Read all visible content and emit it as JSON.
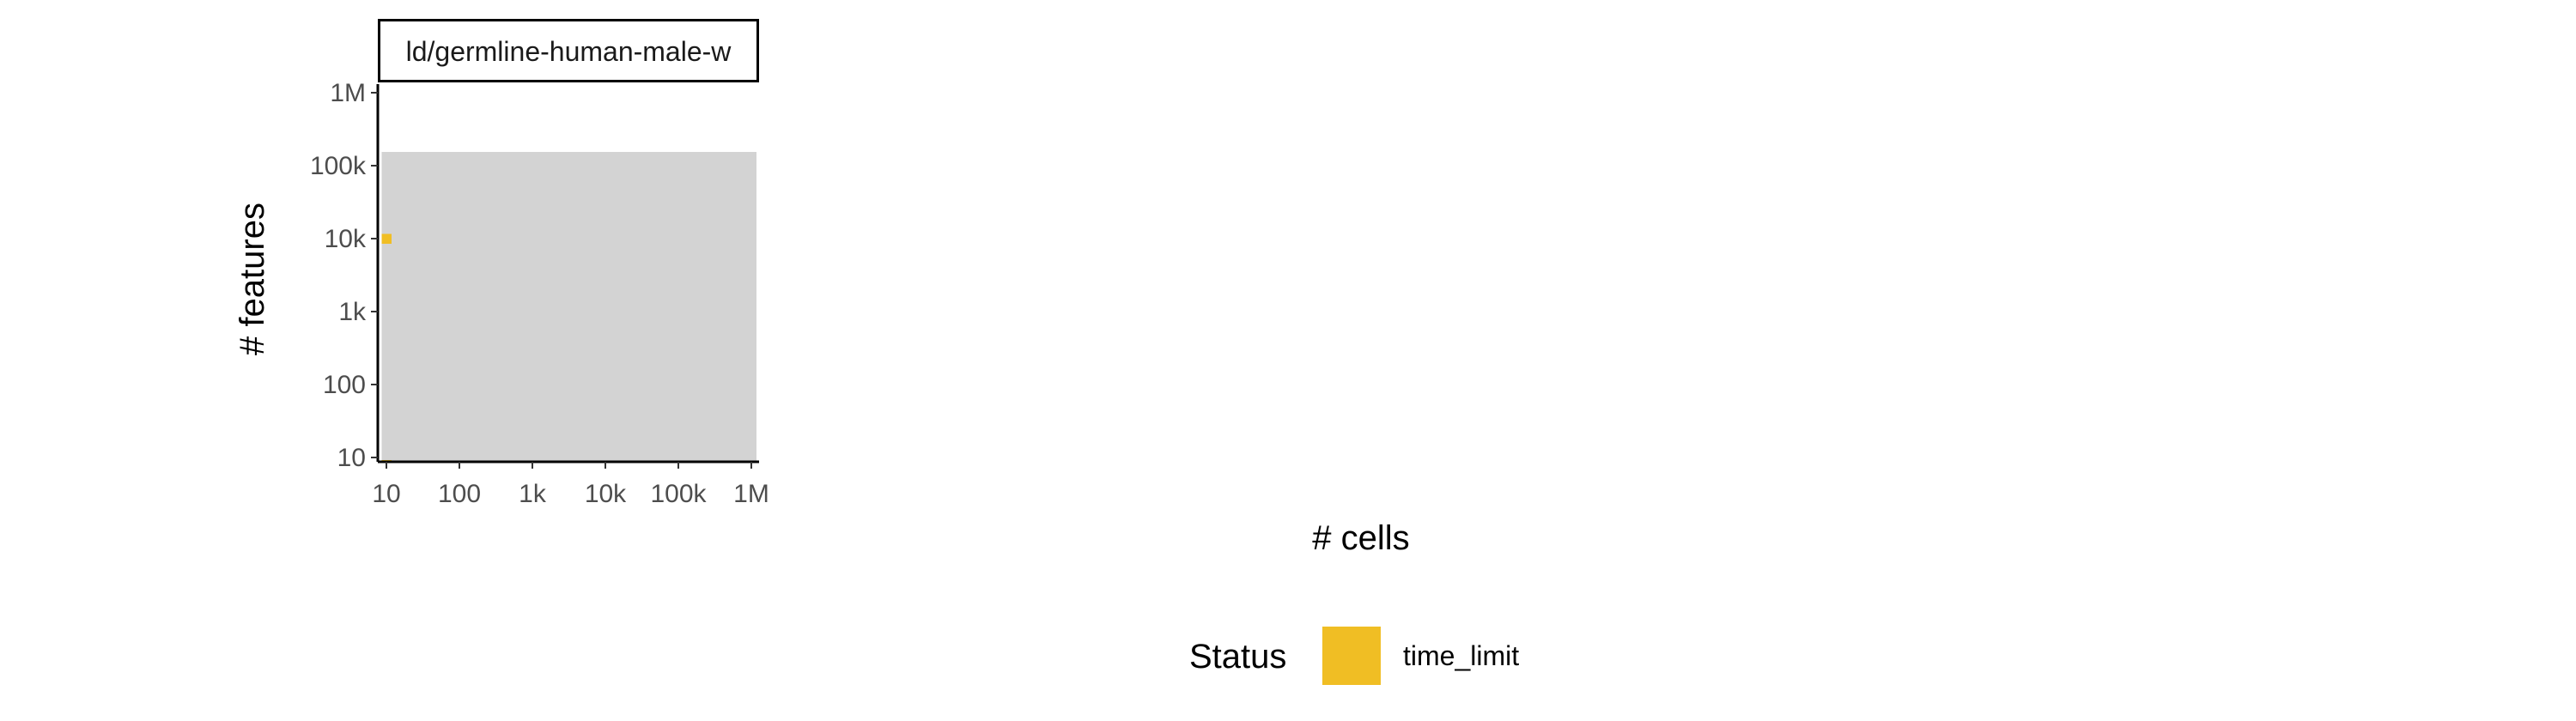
{
  "colors": {
    "time_limit": "#F0BE24",
    "background_cell": "#D3D3D3",
    "axis": "#000000"
  },
  "chart_data": {
    "type": "heatmap",
    "xlabel": "# cells",
    "ylabel": "# features",
    "x_scale": "log10",
    "y_scale": "log10",
    "x_ticks": [
      {
        "value": 10,
        "label": "10"
      },
      {
        "value": 100,
        "label": "100"
      },
      {
        "value": 1000,
        "label": "1k"
      },
      {
        "value": 10000,
        "label": "10k"
      },
      {
        "value": 100000,
        "label": "100k"
      },
      {
        "value": 1000000,
        "label": "1M"
      }
    ],
    "y_ticks": [
      {
        "value": 10,
        "label": "10"
      },
      {
        "value": 100,
        "label": "100"
      },
      {
        "value": 1000,
        "label": "1k"
      },
      {
        "value": 10000,
        "label": "10k"
      },
      {
        "value": 100000,
        "label": "100k"
      },
      {
        "value": 1000000,
        "label": "1M"
      }
    ],
    "grid": false,
    "legend": {
      "title": "Status",
      "placement": "bottom",
      "entries": [
        {
          "label": "time_limit"
        }
      ]
    },
    "panels": [
      {
        "strip": "ld/germline-human-male-w",
        "tested_max_x": [
          1000000,
          1000000,
          1000000,
          1000000,
          1000000,
          1000000,
          1000000,
          1000000,
          1000000,
          1000000,
          1000000,
          1000000,
          1000000,
          1000000,
          1000000,
          1000000,
          1000000,
          1000000,
          1000000,
          1000000,
          1000000,
          1000000,
          1000000,
          1000000,
          1000000,
          1000000,
          1000000,
          1000000,
          1000000,
          1000000,
          1000000,
          1000000,
          1000000,
          1000000
        ],
        "time_limit_cells": [
          [
            "10",
            "10000"
          ],
          [
            "10",
            "8"
          ]
        ]
      }
    ]
  }
}
